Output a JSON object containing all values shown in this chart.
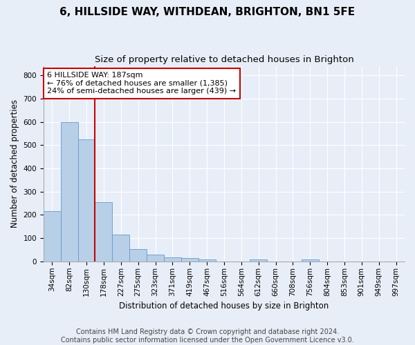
{
  "title1": "6, HILLSIDE WAY, WITHDEAN, BRIGHTON, BN1 5FE",
  "title2": "Size of property relative to detached houses in Brighton",
  "xlabel": "Distribution of detached houses by size in Brighton",
  "ylabel": "Number of detached properties",
  "categories": [
    "34sqm",
    "82sqm",
    "130sqm",
    "178sqm",
    "227sqm",
    "275sqm",
    "323sqm",
    "371sqm",
    "419sqm",
    "467sqm",
    "516sqm",
    "564sqm",
    "612sqm",
    "660sqm",
    "708sqm",
    "756sqm",
    "804sqm",
    "853sqm",
    "901sqm",
    "949sqm",
    "997sqm"
  ],
  "values": [
    215,
    598,
    525,
    255,
    115,
    52,
    30,
    18,
    14,
    10,
    0,
    0,
    10,
    0,
    0,
    8,
    0,
    0,
    0,
    0,
    0
  ],
  "bar_color": "#b8cfe8",
  "bar_edge_color": "#6699cc",
  "ref_line_color": "#cc0000",
  "annotation_line1": "6 HILLSIDE WAY: 187sqm",
  "annotation_line2": "← 76% of detached houses are smaller (1,385)",
  "annotation_line3": "24% of semi-detached houses are larger (439) →",
  "annotation_box_color": "#ffffff",
  "annotation_box_edge": "#cc0000",
  "ylim": [
    0,
    840
  ],
  "yticks": [
    0,
    100,
    200,
    300,
    400,
    500,
    600,
    700,
    800
  ],
  "footer": "Contains HM Land Registry data © Crown copyright and database right 2024.\nContains public sector information licensed under the Open Government Licence v3.0.",
  "bg_color": "#e8eef8",
  "plot_bg_color": "#e8eef8",
  "title1_fontsize": 11,
  "title2_fontsize": 9.5,
  "axis_label_fontsize": 8.5,
  "tick_fontsize": 7.5,
  "annotation_fontsize": 8,
  "footer_fontsize": 7
}
